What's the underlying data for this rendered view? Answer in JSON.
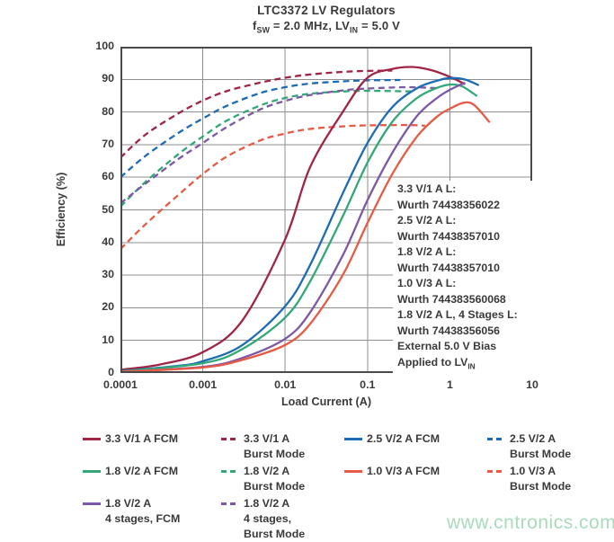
{
  "title": "LTC3372 LV Regulators",
  "subtitle_parts": [
    {
      "t": "f"
    },
    {
      "sub": "SW"
    },
    {
      "t": " = 2.0 MHz, LV"
    },
    {
      "sub": "IN"
    },
    {
      "t": " = 5.0 V"
    }
  ],
  "watermark": {
    "text": "www.cntronics.com",
    "color": "#9fd9b2"
  },
  "annotation": {
    "lines": [
      [
        {
          "t": "3.3 V/1 A L:"
        }
      ],
      [
        {
          "t": "Wurth 74438356022"
        }
      ],
      [
        {
          "t": "2.5 V/2 A L:"
        }
      ],
      [
        {
          "t": "Wurth 74438357010"
        }
      ],
      [
        {
          "t": "1.8 V/2 A L:"
        }
      ],
      [
        {
          "t": "Wurth 74438357010"
        }
      ],
      [
        {
          "t": "1.0 V/3 A L:"
        }
      ],
      [
        {
          "t": "Wurth 744383560068"
        }
      ],
      [
        {
          "t": "1.8 V/2 A L, 4 Stages L:"
        }
      ],
      [
        {
          "t": "Wurth 74438356056"
        }
      ],
      [
        {
          "t": "External 5.0 V Bias"
        }
      ],
      [
        {
          "t": "Applied to LV"
        },
        {
          "sub": "IN"
        }
      ]
    ]
  },
  "legend": {
    "items": [
      {
        "lines": [
          "3.3 V/1 A FCM"
        ],
        "color": "#a02444",
        "dashed": false,
        "col": 0,
        "row": 0
      },
      {
        "lines": [
          "1.8 V/2 A FCM"
        ],
        "color": "#32a877",
        "dashed": false,
        "col": 0,
        "row": 1
      },
      {
        "lines": [
          "1.8 V/2 A",
          "4 stages, FCM"
        ],
        "color": "#7d58a6",
        "dashed": false,
        "col": 0,
        "row": 2
      },
      {
        "lines": [
          "3.3 V/1 A",
          "Burst Mode"
        ],
        "color": "#a02444",
        "dashed": true,
        "col": 1,
        "row": 0
      },
      {
        "lines": [
          "1.8 V/2 A",
          "Burst Mode"
        ],
        "color": "#32a877",
        "dashed": true,
        "col": 1,
        "row": 1
      },
      {
        "lines": [
          "1.8 V/2 A",
          "4 stages,",
          "Burst Mode"
        ],
        "color": "#7d58a6",
        "dashed": true,
        "col": 1,
        "row": 2
      },
      {
        "lines": [
          "2.5 V/2 A FCM"
        ],
        "color": "#1c6bb5",
        "dashed": false,
        "col": 2,
        "row": 0
      },
      {
        "lines": [
          "1.0 V/3 A FCM"
        ],
        "color": "#e75a44",
        "dashed": false,
        "col": 2,
        "row": 1
      },
      {
        "lines": [
          "2.5 V/2 A",
          "Burst Mode"
        ],
        "color": "#1c6bb5",
        "dashed": true,
        "col": 3,
        "row": 0
      },
      {
        "lines": [
          "1.0 V/3 A",
          "Burst Mode"
        ],
        "color": "#e75a44",
        "dashed": true,
        "col": 3,
        "row": 1
      }
    ]
  },
  "chart_data": {
    "type": "line",
    "title": "LTC3372 LV Regulators",
    "xlabel": "Load Current (A)",
    "ylabel": "Efficiency (%)",
    "x_scale": "log",
    "xlim": [
      0.0001,
      10
    ],
    "ylim": [
      0,
      100
    ],
    "x_ticks": [
      "0.0001",
      "0.001",
      "0.01",
      "0.1",
      "1",
      "10"
    ],
    "y_ticks": [
      "0",
      "10",
      "20",
      "30",
      "40",
      "50",
      "60",
      "70",
      "80",
      "90",
      "100"
    ],
    "grid": true,
    "grid_color": "#8f8f8f",
    "frame_color": "#4a4a4a",
    "legend_position": "below",
    "series": [
      {
        "name": "3.3 V/1 A Burst Mode",
        "color": "#a02444",
        "dash": true,
        "points": [
          [
            0.0001,
            66
          ],
          [
            0.0002,
            73
          ],
          [
            0.0005,
            79.5
          ],
          [
            0.001,
            83.5
          ],
          [
            0.002,
            86.5
          ],
          [
            0.005,
            89
          ],
          [
            0.01,
            90.5
          ],
          [
            0.02,
            91.5
          ],
          [
            0.05,
            92.3
          ],
          [
            0.1,
            92.6
          ],
          [
            0.2,
            92.7
          ]
        ]
      },
      {
        "name": "2.5 V/2 A Burst Mode",
        "color": "#1c6bb5",
        "dash": true,
        "points": [
          [
            0.0001,
            60
          ],
          [
            0.0002,
            66.5
          ],
          [
            0.0005,
            73.5
          ],
          [
            0.001,
            78
          ],
          [
            0.002,
            82
          ],
          [
            0.005,
            85.8
          ],
          [
            0.01,
            87.6
          ],
          [
            0.02,
            88.7
          ],
          [
            0.05,
            89.4
          ],
          [
            0.1,
            89.7
          ],
          [
            0.25,
            89.8
          ]
        ]
      },
      {
        "name": "1.8 V/2 A Burst Mode",
        "color": "#32a877",
        "dash": true,
        "points": [
          [
            0.0001,
            51
          ],
          [
            0.0002,
            58.5
          ],
          [
            0.0005,
            67
          ],
          [
            0.001,
            72.5
          ],
          [
            0.002,
            77.5
          ],
          [
            0.005,
            82
          ],
          [
            0.01,
            84.3
          ],
          [
            0.02,
            85.6
          ],
          [
            0.05,
            86.3
          ],
          [
            0.1,
            86.5
          ],
          [
            0.35,
            86.3
          ]
        ]
      },
      {
        "name": "1.8 V/2 A 4 stages, Burst Mode",
        "color": "#7d58a6",
        "dash": true,
        "points": [
          [
            0.0001,
            52
          ],
          [
            0.0002,
            58
          ],
          [
            0.0005,
            65.5
          ],
          [
            0.001,
            70.5
          ],
          [
            0.002,
            75.5
          ],
          [
            0.005,
            80.8
          ],
          [
            0.01,
            83.4
          ],
          [
            0.02,
            85.2
          ],
          [
            0.05,
            86.6
          ],
          [
            0.1,
            87.2
          ],
          [
            0.3,
            87.6
          ],
          [
            0.7,
            87.3
          ]
        ]
      },
      {
        "name": "1.0 V/3 A Burst Mode",
        "color": "#e75a44",
        "dash": true,
        "points": [
          [
            0.0001,
            38
          ],
          [
            0.0002,
            45.5
          ],
          [
            0.0005,
            54.5
          ],
          [
            0.001,
            61
          ],
          [
            0.002,
            66.5
          ],
          [
            0.005,
            71.3
          ],
          [
            0.01,
            73.4
          ],
          [
            0.02,
            74.8
          ],
          [
            0.05,
            75.6
          ],
          [
            0.1,
            75.9
          ],
          [
            0.3,
            76
          ],
          [
            0.5,
            75.8
          ]
        ]
      },
      {
        "name": "3.3 V/1 A FCM",
        "color": "#a02444",
        "dash": false,
        "points": [
          [
            0.0001,
            1
          ],
          [
            0.0003,
            2.6
          ],
          [
            0.001,
            6.4
          ],
          [
            0.003,
            16
          ],
          [
            0.01,
            41
          ],
          [
            0.02,
            63
          ],
          [
            0.05,
            80
          ],
          [
            0.1,
            90.5
          ],
          [
            0.2,
            93.2
          ],
          [
            0.35,
            93.8
          ],
          [
            0.6,
            92.8
          ],
          [
            1,
            90.8
          ],
          [
            1.5,
            88.6
          ]
        ]
      },
      {
        "name": "2.5 V/2 A FCM",
        "color": "#1c6bb5",
        "dash": false,
        "points": [
          [
            0.0001,
            0.6
          ],
          [
            0.0005,
            2.2
          ],
          [
            0.001,
            3.6
          ],
          [
            0.003,
            8.5
          ],
          [
            0.01,
            20.5
          ],
          [
            0.02,
            33
          ],
          [
            0.05,
            55
          ],
          [
            0.1,
            70.5
          ],
          [
            0.2,
            81.5
          ],
          [
            0.4,
            87.3
          ],
          [
            0.7,
            89.6
          ],
          [
            1,
            90.4
          ],
          [
            1.5,
            90
          ],
          [
            2.2,
            88.3
          ]
        ]
      },
      {
        "name": "1.8 V/2 A FCM",
        "color": "#32a877",
        "dash": false,
        "points": [
          [
            0.0001,
            0.5
          ],
          [
            0.001,
            3
          ],
          [
            0.003,
            7.3
          ],
          [
            0.01,
            17
          ],
          [
            0.02,
            28
          ],
          [
            0.05,
            48
          ],
          [
            0.1,
            64.5
          ],
          [
            0.2,
            77
          ],
          [
            0.4,
            84.3
          ],
          [
            0.7,
            87.4
          ],
          [
            1,
            88.4
          ],
          [
            1.4,
            87.9
          ],
          [
            2.1,
            85
          ]
        ]
      },
      {
        "name": "1.8 V/2 A 4 stages, FCM",
        "color": "#7d58a6",
        "dash": false,
        "points": [
          [
            0.0001,
            0.4
          ],
          [
            0.001,
            1.9
          ],
          [
            0.003,
            4.6
          ],
          [
            0.01,
            10.5
          ],
          [
            0.02,
            18.5
          ],
          [
            0.05,
            36
          ],
          [
            0.1,
            53
          ],
          [
            0.2,
            67.5
          ],
          [
            0.4,
            78.8
          ],
          [
            0.7,
            84.3
          ],
          [
            1,
            86.8
          ],
          [
            1.5,
            88.9
          ]
        ]
      },
      {
        "name": "1.0 V/3 A FCM",
        "color": "#e75a44",
        "dash": false,
        "points": [
          [
            0.0001,
            0.4
          ],
          [
            0.001,
            1.7
          ],
          [
            0.003,
            4
          ],
          [
            0.01,
            8.6
          ],
          [
            0.02,
            15
          ],
          [
            0.05,
            30
          ],
          [
            0.1,
            46
          ],
          [
            0.2,
            61
          ],
          [
            0.4,
            72.5
          ],
          [
            0.7,
            78.6
          ],
          [
            1,
            81
          ],
          [
            1.5,
            82.9
          ],
          [
            2,
            82
          ],
          [
            3,
            77
          ]
        ]
      }
    ]
  }
}
